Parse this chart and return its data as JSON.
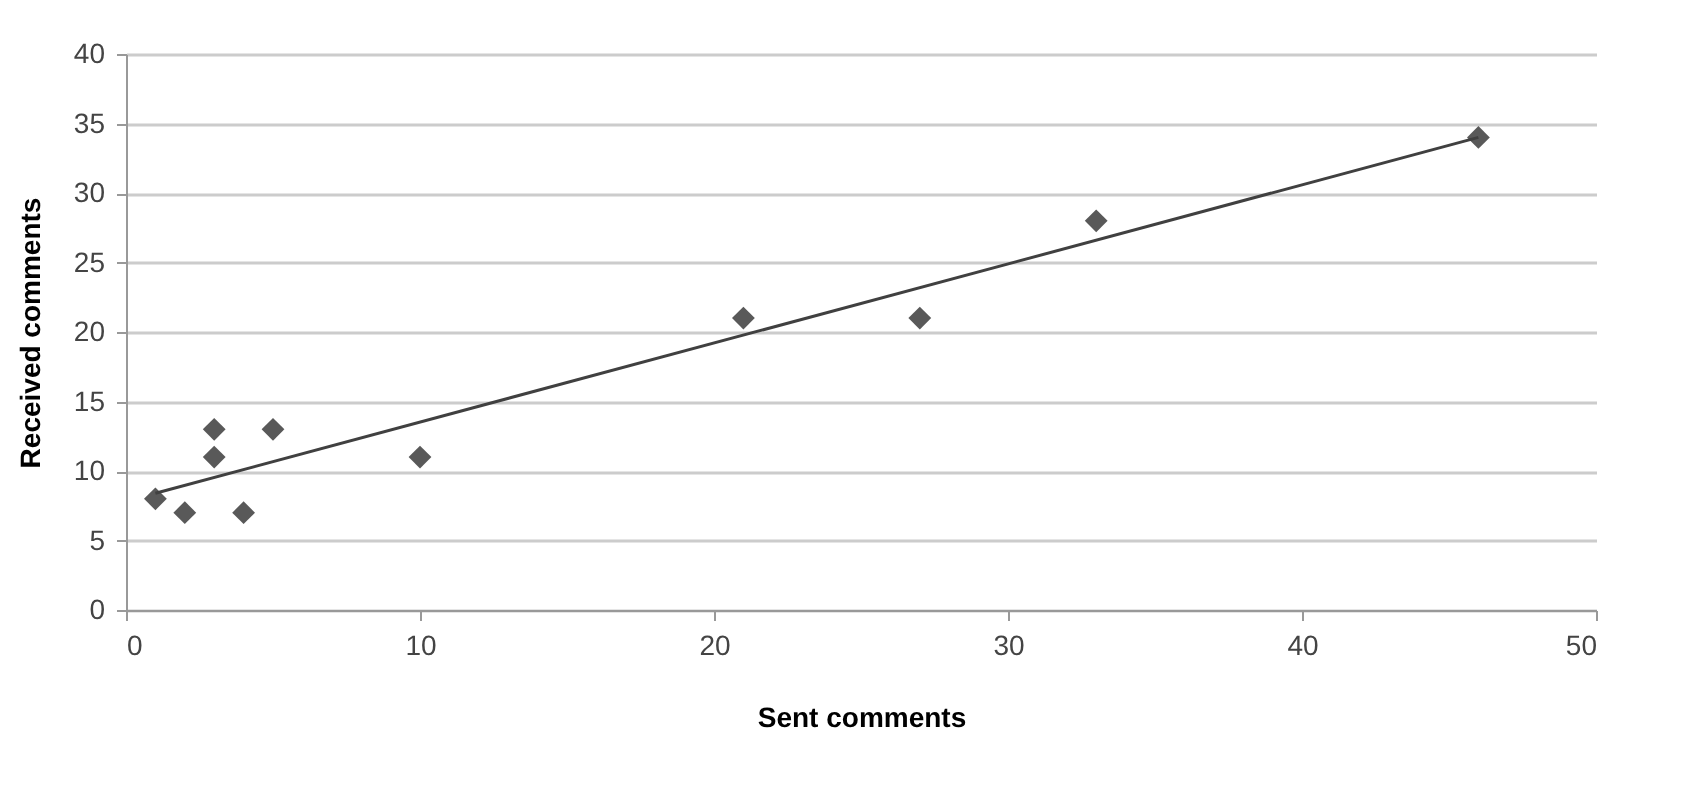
{
  "chart_data": {
    "type": "scatter",
    "xlabel": "Sent comments",
    "ylabel": "Received comments",
    "x": [
      1,
      2,
      3,
      3,
      4,
      5,
      10,
      21,
      27,
      33,
      46
    ],
    "series": [
      {
        "color": "#595959",
        "values": [
          8,
          7,
          13,
          11,
          7,
          13,
          11,
          21,
          21,
          28,
          34
        ]
      },
      {
        "type": "line",
        "color": "#404040",
        "marker": "none",
        "x": [
          1,
          46
        ],
        "values": [
          8.4,
          34
        ]
      }
    ],
    "xlim": [
      0,
      50
    ],
    "xticks": [
      0,
      10,
      20,
      30,
      40,
      50
    ],
    "ylim": [
      0,
      40
    ],
    "yticks": [
      0,
      5,
      10,
      15,
      20,
      25,
      30,
      35,
      40
    ],
    "grid": "y",
    "marker": "diamond"
  }
}
